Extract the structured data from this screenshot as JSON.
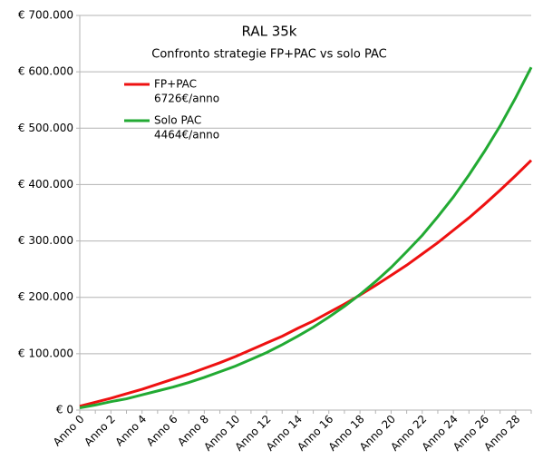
{
  "chart_data": {
    "type": "line",
    "title": "RAL 35k",
    "subtitle": "Confronto strategie FP+PAC vs solo PAC",
    "categories": [
      "Anno 0",
      null,
      "Anno 2",
      null,
      "Anno 4",
      null,
      "Anno 6",
      null,
      "Anno 8",
      null,
      "Anno 10",
      null,
      "Anno 12",
      null,
      "Anno 14",
      null,
      "Anno 16",
      null,
      "Anno 18",
      null,
      "Anno 20",
      null,
      "Anno 22",
      null,
      "Anno 24",
      null,
      "Anno 26",
      null,
      "Anno 28",
      null
    ],
    "series": [
      {
        "name": "FP+PAC",
        "note": "6726€/anno",
        "color": "#ee1111",
        "values": [
          7000,
          14000,
          21000,
          29000,
          37000,
          46000,
          55000,
          64000,
          74000,
          84000,
          95000,
          107000,
          119000,
          131000,
          145000,
          158000,
          173000,
          188000,
          204000,
          221000,
          239000,
          257000,
          277000,
          297000,
          319000,
          341000,
          365000,
          390000,
          416000,
          443000
        ]
      },
      {
        "name": "Solo PAC",
        "note": "4464€/anno",
        "color": "#22aa33",
        "values": [
          4000,
          9000,
          15000,
          20000,
          27000,
          34000,
          41000,
          49000,
          58000,
          68000,
          78000,
          90000,
          102000,
          116000,
          131000,
          147000,
          165000,
          184000,
          205000,
          228000,
          253000,
          281000,
          310000,
          343000,
          378000,
          417000,
          459000,
          504000,
          554000,
          608000
        ]
      }
    ],
    "ylim": [
      0,
      700000
    ],
    "yticks": [
      {
        "value": 0,
        "label": "€ 0"
      },
      {
        "value": 100000,
        "label": "€ 100.000"
      },
      {
        "value": 200000,
        "label": "€ 200.000"
      },
      {
        "value": 300000,
        "label": "€ 300.000"
      },
      {
        "value": 400000,
        "label": "€ 400.000"
      },
      {
        "value": 500000,
        "label": "€ 500.000"
      },
      {
        "value": 600000,
        "label": "€ 600.000"
      },
      {
        "value": 700000,
        "label": "€ 700.000"
      }
    ],
    "grid": true
  }
}
